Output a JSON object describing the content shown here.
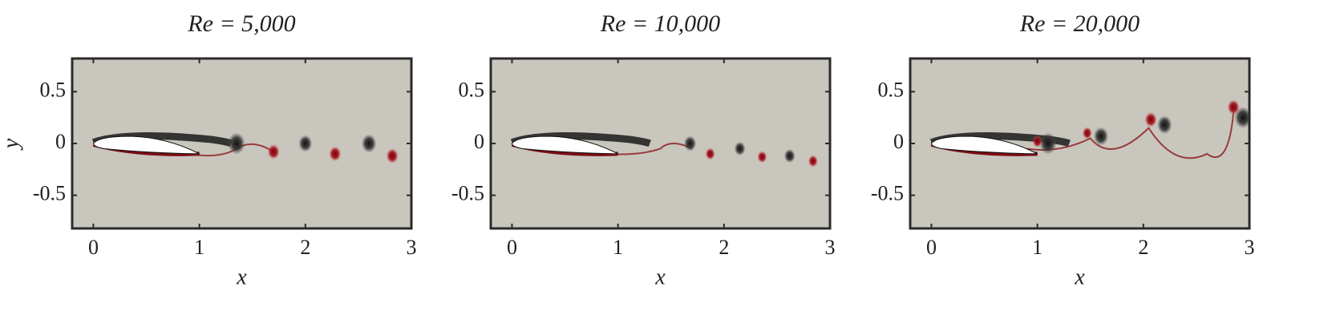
{
  "chart_data": [
    {
      "type": "field",
      "title": "Re = 5,000",
      "xlabel": "x",
      "ylabel": "y",
      "xlim": [
        -0.2,
        3
      ],
      "ylim": [
        -0.82,
        0.82
      ],
      "xticks": [
        0,
        1,
        2,
        3
      ],
      "yticks": [
        -0.5,
        0,
        0.5
      ]
    },
    {
      "type": "field",
      "title": "Re = 10,000",
      "xlabel": "x",
      "xlim": [
        -0.2,
        3
      ],
      "ylim": [
        -0.82,
        0.82
      ],
      "xticks": [
        0,
        1,
        2,
        3
      ],
      "yticks": [
        -0.5,
        0,
        0.5
      ]
    },
    {
      "type": "field",
      "title": "Re = 20,000",
      "xlabel": "x",
      "xlim": [
        -0.2,
        3
      ],
      "ylim": [
        -0.82,
        0.82
      ],
      "xticks": [
        0,
        1,
        2,
        3
      ],
      "yticks": [
        -0.5,
        0,
        0.5
      ]
    }
  ]
}
